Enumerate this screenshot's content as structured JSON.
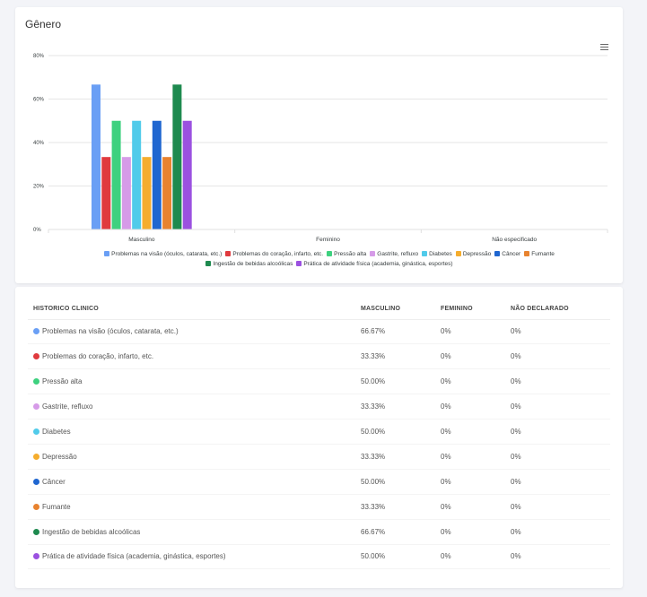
{
  "card_title": "Gênero",
  "chart_data": {
    "type": "bar",
    "title": "Gênero",
    "categories": [
      "Masculino",
      "Feminino",
      "Não especificado"
    ],
    "ylim": [
      0,
      80
    ],
    "yticks": [
      "80%",
      "60%",
      "40%",
      "20%",
      "0%"
    ],
    "grid": true,
    "legend_position": "bottom",
    "series": [
      {
        "name": "Problemas na visão (óculos, catarata, etc.)",
        "color": "#6a9ff5",
        "values": [
          66.67,
          0,
          0
        ]
      },
      {
        "name": "Problemas do coração, infarto, etc.",
        "color": "#e03a3e",
        "values": [
          33.33,
          0,
          0
        ]
      },
      {
        "name": "Pressão alta",
        "color": "#3ed17f",
        "values": [
          50.0,
          0,
          0
        ]
      },
      {
        "name": "Gastrite, refluxo",
        "color": "#d69be8",
        "values": [
          33.33,
          0,
          0
        ]
      },
      {
        "name": "Diabetes",
        "color": "#51cbea",
        "values": [
          50.0,
          0,
          0
        ]
      },
      {
        "name": "Depressão",
        "color": "#f5ad2e",
        "values": [
          33.33,
          0,
          0
        ]
      },
      {
        "name": "Câncer",
        "color": "#1f66d0",
        "values": [
          50.0,
          0,
          0
        ]
      },
      {
        "name": "Fumante",
        "color": "#e8832f",
        "values": [
          33.33,
          0,
          0
        ]
      },
      {
        "name": "Ingestão de bebidas alcoólicas",
        "color": "#1e8a4f",
        "values": [
          66.67,
          0,
          0
        ]
      },
      {
        "name": "Prática de atividade física (academia, ginástica, esportes)",
        "color": "#9b51e0",
        "values": [
          50.0,
          0,
          0
        ]
      }
    ]
  },
  "table": {
    "headers": [
      "HISTORICO CLINICO",
      "MASCULINO",
      "FEMININO",
      "NÃO DECLARADO"
    ],
    "rows": [
      {
        "name": "Problemas na visão (óculos, catarata, etc.)",
        "color": "#6a9ff5",
        "m": "66.67%",
        "f": "0%",
        "n": "0%"
      },
      {
        "name": "Problemas do coração, infarto, etc.",
        "color": "#e03a3e",
        "m": "33.33%",
        "f": "0%",
        "n": "0%"
      },
      {
        "name": "Pressão alta",
        "color": "#3ed17f",
        "m": "50.00%",
        "f": "0%",
        "n": "0%"
      },
      {
        "name": "Gastrite, refluxo",
        "color": "#d69be8",
        "m": "33.33%",
        "f": "0%",
        "n": "0%"
      },
      {
        "name": "Diabetes",
        "color": "#51cbea",
        "m": "50.00%",
        "f": "0%",
        "n": "0%"
      },
      {
        "name": "Depressão",
        "color": "#f5ad2e",
        "m": "33.33%",
        "f": "0%",
        "n": "0%"
      },
      {
        "name": "Câncer",
        "color": "#1f66d0",
        "m": "50.00%",
        "f": "0%",
        "n": "0%"
      },
      {
        "name": "Fumante",
        "color": "#e8832f",
        "m": "33.33%",
        "f": "0%",
        "n": "0%"
      },
      {
        "name": "Ingestão de bebidas alcoólicas",
        "color": "#1e8a4f",
        "m": "66.67%",
        "f": "0%",
        "n": "0%"
      },
      {
        "name": "Prática de atividade física (academia, ginástica, esportes)",
        "color": "#9b51e0",
        "m": "50.00%",
        "f": "0%",
        "n": "0%"
      }
    ]
  }
}
